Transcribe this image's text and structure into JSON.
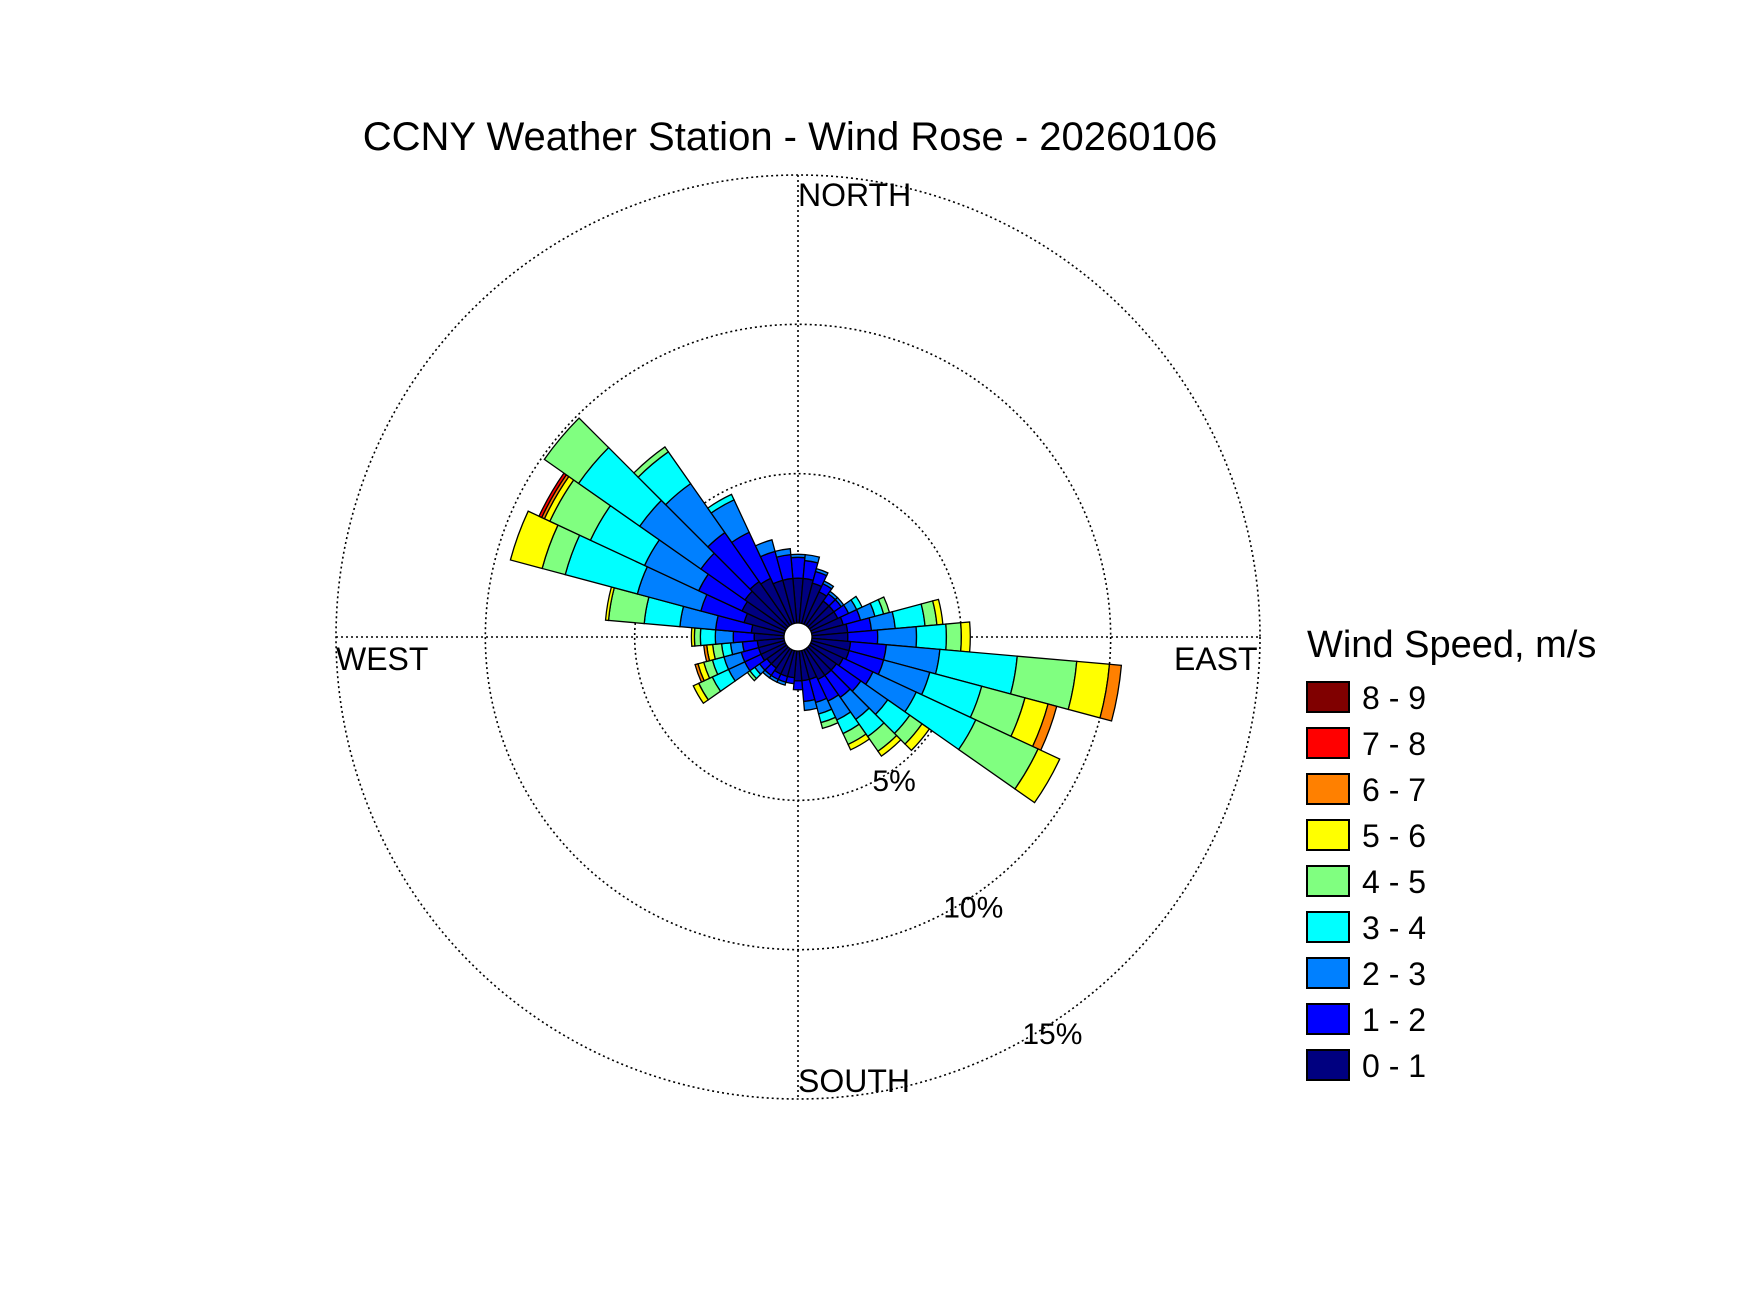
{
  "chart_data": {
    "type": "wind-rose",
    "title": "CCNY Weather Station - Wind Rose - 20260106",
    "compass": {
      "north": "NORTH",
      "east": "EAST",
      "south": "SOUTH",
      "west": "WEST"
    },
    "radial_ticks": [
      5,
      10,
      15
    ],
    "radial_tick_labels": [
      "5%",
      "10%",
      "15%"
    ],
    "radial_max": 15,
    "grid": true,
    "legend": {
      "title": "Wind Speed, m/s",
      "placement": "right",
      "bins": [
        {
          "label": "8 - 9",
          "color": "#800000"
        },
        {
          "label": "7 - 8",
          "color": "#ff0000"
        },
        {
          "label": "6 - 7",
          "color": "#ff8000"
        },
        {
          "label": "5 - 6",
          "color": "#ffff00"
        },
        {
          "label": "4 - 5",
          "color": "#80ff80"
        },
        {
          "label": "3 - 4",
          "color": "#00ffff"
        },
        {
          "label": "2 - 3",
          "color": "#0080ff"
        },
        {
          "label": "1 - 2",
          "color": "#0000ff"
        },
        {
          "label": "0 - 1",
          "color": "#000080"
        }
      ]
    },
    "speed_bins_order": [
      "0 - 1",
      "1 - 2",
      "2 - 3",
      "3 - 4",
      "4 - 5",
      "5 - 6",
      "6 - 7",
      "7 - 8",
      "8 - 9"
    ],
    "sector_width_deg": 10,
    "sectors": [
      {
        "dir": 0,
        "values": [
          1.5,
          0.7,
          0.1,
          0,
          0,
          0,
          0,
          0,
          0
        ]
      },
      {
        "dir": 10,
        "values": [
          1.5,
          0.6,
          0.2,
          0,
          0,
          0,
          0,
          0,
          0
        ]
      },
      {
        "dir": 20,
        "values": [
          1.4,
          0.4,
          0.1,
          0,
          0,
          0,
          0,
          0,
          0
        ]
      },
      {
        "dir": 30,
        "values": [
          1.2,
          0.3,
          0.1,
          0,
          0,
          0,
          0,
          0,
          0
        ]
      },
      {
        "dir": 40,
        "values": [
          1.0,
          0.3,
          0.1,
          0,
          0,
          0,
          0,
          0,
          0
        ]
      },
      {
        "dir": 50,
        "values": [
          1.0,
          0.3,
          0.1,
          0,
          0,
          0,
          0,
          0,
          0
        ]
      },
      {
        "dir": 60,
        "values": [
          1.0,
          0.4,
          0.3,
          0.2,
          0,
          0,
          0,
          0,
          0
        ]
      },
      {
        "dir": 70,
        "values": [
          1.1,
          0.6,
          0.5,
          0.3,
          0.2,
          0,
          0,
          0,
          0
        ]
      },
      {
        "dir": 80,
        "values": [
          1.2,
          0.8,
          0.8,
          1.0,
          0.4,
          0.2,
          0,
          0,
          0
        ]
      },
      {
        "dir": 90,
        "values": [
          1.2,
          1.0,
          1.3,
          1.0,
          0.5,
          0.3,
          0,
          0,
          0
        ]
      },
      {
        "dir": 100,
        "values": [
          1.3,
          1.2,
          1.8,
          2.6,
          2.0,
          1.1,
          0.4,
          0,
          0
        ]
      },
      {
        "dir": 110,
        "values": [
          1.3,
          1.2,
          1.6,
          1.8,
          1.5,
          0.8,
          0.3,
          0,
          0
        ]
      },
      {
        "dir": 120,
        "values": [
          1.2,
          1.1,
          1.6,
          2.2,
          2.3,
          0.8,
          0,
          0,
          0
        ]
      },
      {
        "dir": 130,
        "values": [
          1.1,
          1.0,
          1.1,
          0.9,
          0.5,
          0.3,
          0,
          0,
          0
        ]
      },
      {
        "dir": 140,
        "values": [
          1.1,
          0.9,
          0.9,
          0.7,
          0.6,
          0.2,
          0,
          0,
          0
        ]
      },
      {
        "dir": 150,
        "values": [
          1.1,
          0.8,
          0.7,
          0.5,
          0.4,
          0.2,
          0,
          0,
          0
        ]
      },
      {
        "dir": 160,
        "values": [
          1.0,
          0.8,
          0.4,
          0.3,
          0.2,
          0,
          0,
          0,
          0
        ]
      },
      {
        "dir": 170,
        "values": [
          1.0,
          0.7,
          0.3,
          0,
          0,
          0,
          0,
          0,
          0
        ]
      },
      {
        "dir": 180,
        "values": [
          1.0,
          0.3,
          0,
          0,
          0,
          0,
          0,
          0,
          0
        ]
      },
      {
        "dir": 190,
        "values": [
          0.9,
          0.2,
          0,
          0,
          0,
          0,
          0,
          0,
          0
        ]
      },
      {
        "dir": 200,
        "values": [
          0.9,
          0.2,
          0.1,
          0,
          0,
          0,
          0,
          0,
          0
        ]
      },
      {
        "dir": 210,
        "values": [
          0.9,
          0.2,
          0.1,
          0,
          0,
          0,
          0,
          0,
          0
        ]
      },
      {
        "dir": 220,
        "values": [
          0.8,
          0.3,
          0.1,
          0,
          0,
          0,
          0,
          0,
          0
        ]
      },
      {
        "dir": 230,
        "values": [
          0.8,
          0.3,
          0.2,
          0.2,
          0.1,
          0,
          0,
          0,
          0
        ]
      },
      {
        "dir": 240,
        "values": [
          0.9,
          0.6,
          0.6,
          0.6,
          0.5,
          0.2,
          0,
          0,
          0
        ]
      },
      {
        "dir": 250,
        "values": [
          0.9,
          0.6,
          0.6,
          0.4,
          0.3,
          0.2,
          0.1,
          0,
          0
        ]
      },
      {
        "dir": 260,
        "values": [
          0.9,
          0.5,
          0.4,
          0.3,
          0.3,
          0.2,
          0.1,
          0,
          0
        ]
      },
      {
        "dir": 270,
        "values": [
          1.0,
          0.7,
          0.6,
          0.5,
          0.2,
          0.1,
          0,
          0,
          0
        ]
      },
      {
        "dir": 280,
        "values": [
          1.1,
          1.2,
          1.2,
          1.2,
          1.2,
          0.1,
          0,
          0,
          0
        ]
      },
      {
        "dir": 290,
        "values": [
          1.4,
          1.5,
          2.2,
          2.5,
          0.8,
          1.1,
          0,
          0,
          0
        ]
      },
      {
        "dir": 300,
        "values": [
          1.6,
          1.6,
          2.0,
          2.0,
          1.5,
          0.2,
          0.1,
          0.1,
          0
        ]
      },
      {
        "dir": 310,
        "values": [
          1.7,
          1.8,
          2.5,
          2.5,
          1.4,
          0,
          0,
          0,
          0
        ]
      },
      {
        "dir": 320,
        "values": [
          1.8,
          2.0,
          2.0,
          1.3,
          0.2,
          0,
          0,
          0,
          0
        ]
      },
      {
        "dir": 330,
        "values": [
          1.7,
          1.7,
          1.2,
          0.2,
          0,
          0,
          0,
          0,
          0
        ]
      },
      {
        "dir": 340,
        "values": [
          1.5,
          1.0,
          0.4,
          0,
          0,
          0,
          0,
          0,
          0
        ]
      },
      {
        "dir": 350,
        "values": [
          1.5,
          0.8,
          0.2,
          0,
          0,
          0,
          0,
          0,
          0
        ]
      }
    ]
  }
}
